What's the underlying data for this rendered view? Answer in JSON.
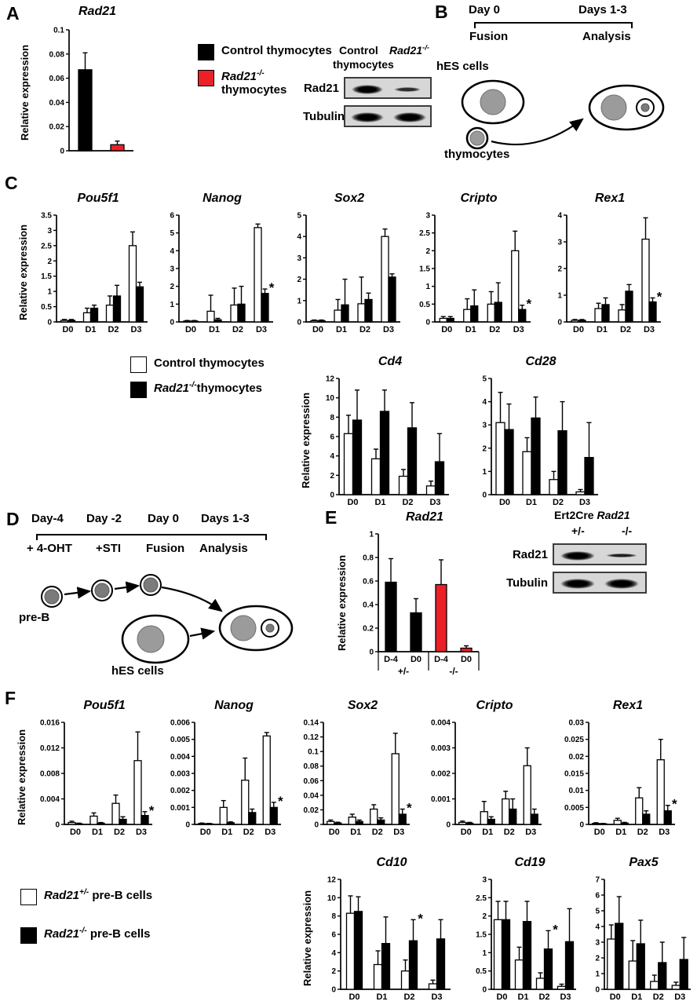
{
  "sig": "*",
  "colors": {
    "black": "#000000",
    "white": "#ffffff",
    "red": "#ec2027",
    "nucleus_gray": "#9b9b9b"
  },
  "ylabel": "Relative expression",
  "panels": {
    "a": "A",
    "b": "B",
    "c": "C",
    "d": "D",
    "e": "E",
    "f": "F"
  },
  "panel_a": {
    "legend_control": "Control thymocytes",
    "legend_ko_gene": "Rad21",
    "legend_ko_sup": "-/-",
    "legend_ko_rest": "thymocytes",
    "blot": {
      "col_control": "Control",
      "col_ko_gene": "Rad21",
      "col_ko_sup": "-/-",
      "col_sub": "thymocytes",
      "row1": "Rad21",
      "row2": "Tubulin"
    }
  },
  "panel_b": {
    "day0": "Day 0",
    "days13": "Days 1-3",
    "fusion": "Fusion",
    "analysis": "Analysis",
    "hes": "hES cells",
    "thymocytes": "thymocytes"
  },
  "panel_c": {
    "legend_control": "Control thymocytes",
    "legend_ko_gene": "Rad21",
    "legend_ko_sup": "-/-",
    "legend_ko_rest": "thymocytes"
  },
  "panel_d": {
    "timeline_top": [
      "Day-4",
      "Day -2",
      "Day 0",
      "Days 1-3"
    ],
    "timeline_bottom": [
      "+ 4-OHT",
      "+STI",
      "Fusion",
      "Analysis"
    ],
    "preb": "pre-B",
    "hes": "hES cells"
  },
  "panel_e": {
    "blot": {
      "head_plain": "Ert2Cre ",
      "head_gene": "Rad21",
      "lane1": "+/-",
      "lane2": "-/-",
      "row1": "Rad21",
      "row2": "Tubulin"
    }
  },
  "panel_f": {
    "legend_het_gene": "Rad21",
    "legend_het_sup": "+/-",
    "legend_het_rest": " pre-B cells",
    "legend_ko_gene": "Rad21",
    "legend_ko_sup": "-/-",
    "legend_ko_rest": " pre-B cells"
  },
  "chart_data": [
    {
      "id": "a_rad21",
      "type": "bar",
      "title": "Rad21",
      "ylabel": "Relative expression",
      "ymax": 0.1,
      "yticks": [
        0,
        0.02,
        0.04,
        0.06,
        0.08,
        0.1
      ],
      "categories": [
        "",
        ""
      ],
      "series": [
        {
          "name": "Control vs Rad21-/- thymocytes",
          "colors": [
            "#000000",
            "#ec2027"
          ],
          "values": [
            0.067,
            0.005
          ],
          "errors": [
            0.014,
            0.003
          ]
        }
      ]
    },
    {
      "id": "c_pou5f1",
      "type": "bar",
      "title": "Pou5f1",
      "ylabel": "Relative expression",
      "ymax": 3.5,
      "yticks": [
        0,
        0.5,
        1,
        1.5,
        2,
        2.5,
        3,
        3.5
      ],
      "categories": [
        "D0",
        "D1",
        "D2",
        "D3"
      ],
      "series": [
        {
          "name": "Control thymocytes",
          "fill": "#ffffff",
          "values": [
            0.05,
            0.3,
            0.55,
            2.5
          ],
          "errors": [
            0.03,
            0.15,
            0.3,
            0.45
          ]
        },
        {
          "name": "Rad21-/- thymocytes",
          "fill": "#000000",
          "values": [
            0.05,
            0.45,
            0.85,
            1.15
          ],
          "errors": [
            0.03,
            0.1,
            0.35,
            0.15
          ]
        }
      ]
    },
    {
      "id": "c_nanog",
      "type": "bar",
      "title": "Nanog",
      "ymax": 6,
      "yticks": [
        0,
        1,
        2,
        3,
        4,
        5,
        6
      ],
      "categories": [
        "D0",
        "D1",
        "D2",
        "D3"
      ],
      "series": [
        {
          "name": "Control thymocytes",
          "fill": "#ffffff",
          "values": [
            0.05,
            0.6,
            0.95,
            5.3
          ],
          "errors": [
            0.03,
            0.9,
            0.95,
            0.2
          ]
        },
        {
          "name": "Rad21-/- thymocytes",
          "fill": "#000000",
          "values": [
            0.05,
            0.12,
            1.0,
            1.6
          ],
          "errors": [
            0.03,
            0.08,
            1.0,
            0.25
          ]
        }
      ],
      "asterisk": 3
    },
    {
      "id": "c_sox2",
      "type": "bar",
      "title": "Sox2",
      "ymax": 5,
      "yticks": [
        0,
        1,
        2,
        3,
        4,
        5
      ],
      "categories": [
        "D0",
        "D1",
        "D2",
        "D3"
      ],
      "series": [
        {
          "name": "Control thymocytes",
          "fill": "#ffffff",
          "values": [
            0.06,
            0.55,
            0.85,
            4.0
          ],
          "errors": [
            0.03,
            0.5,
            1.25,
            0.35
          ]
        },
        {
          "name": "Rad21-/- thymocytes",
          "fill": "#000000",
          "values": [
            0.06,
            0.8,
            1.05,
            2.1
          ],
          "errors": [
            0.03,
            1.2,
            0.3,
            0.15
          ]
        }
      ]
    },
    {
      "id": "c_cripto",
      "type": "bar",
      "title": "Cripto",
      "ymax": 3,
      "yticks": [
        0,
        0.5,
        1,
        1.5,
        2,
        2.5,
        3
      ],
      "categories": [
        "D0",
        "D1",
        "D2",
        "D3"
      ],
      "series": [
        {
          "name": "Control thymocytes",
          "fill": "#ffffff",
          "values": [
            0.1,
            0.35,
            0.5,
            2.0
          ],
          "errors": [
            0.05,
            0.3,
            0.35,
            0.55
          ]
        },
        {
          "name": "Rad21-/- thymocytes",
          "fill": "#000000",
          "values": [
            0.1,
            0.45,
            0.55,
            0.35
          ],
          "errors": [
            0.05,
            0.45,
            0.55,
            0.12
          ]
        }
      ],
      "asterisk": 3
    },
    {
      "id": "c_rex1",
      "type": "bar",
      "title": "Rex1",
      "ymax": 4,
      "yticks": [
        0,
        1,
        2,
        3,
        4
      ],
      "categories": [
        "D0",
        "D1",
        "D2",
        "D3"
      ],
      "series": [
        {
          "name": "Control thymocytes",
          "fill": "#ffffff",
          "values": [
            0.06,
            0.5,
            0.45,
            3.1
          ],
          "errors": [
            0.03,
            0.2,
            0.2,
            0.8
          ]
        },
        {
          "name": "Rad21-/- thymocytes",
          "fill": "#000000",
          "values": [
            0.06,
            0.65,
            1.15,
            0.75
          ],
          "errors": [
            0.03,
            0.25,
            0.25,
            0.15
          ]
        }
      ],
      "asterisk": 3
    },
    {
      "id": "c_cd4",
      "type": "bar",
      "title": "Cd4",
      "ylabel": "Relative expression",
      "ymax": 12,
      "yticks": [
        0,
        2,
        4,
        6,
        8,
        10,
        12
      ],
      "categories": [
        "D0",
        "D1",
        "D2",
        "D3"
      ],
      "series": [
        {
          "name": "Control thymocytes",
          "fill": "#ffffff",
          "values": [
            6.3,
            3.7,
            1.9,
            0.9
          ],
          "errors": [
            1.9,
            1.0,
            0.7,
            0.5
          ]
        },
        {
          "name": "Rad21-/- thymocytes",
          "fill": "#000000",
          "values": [
            7.7,
            8.6,
            6.9,
            3.4
          ],
          "errors": [
            3.1,
            2.2,
            2.6,
            2.9
          ]
        }
      ]
    },
    {
      "id": "c_cd28",
      "type": "bar",
      "title": "Cd28",
      "ymax": 5,
      "yticks": [
        0,
        1,
        2,
        3,
        4,
        5
      ],
      "categories": [
        "D0",
        "D1",
        "D2",
        "D3"
      ],
      "series": [
        {
          "name": "Control thymocytes",
          "fill": "#ffffff",
          "values": [
            3.1,
            1.85,
            0.65,
            0.12
          ],
          "errors": [
            1.3,
            0.6,
            0.35,
            0.1
          ]
        },
        {
          "name": "Rad21-/- thymocytes",
          "fill": "#000000",
          "values": [
            2.8,
            3.3,
            2.75,
            1.6
          ],
          "errors": [
            1.1,
            0.9,
            1.25,
            1.5
          ]
        }
      ]
    },
    {
      "id": "e_rad21",
      "type": "bar",
      "title": "Rad21",
      "ylabel": "Relative expression",
      "ymax": 1,
      "yticks": [
        0,
        0.2,
        0.4,
        0.6,
        0.8,
        1
      ],
      "categories": [
        "D-4",
        "D0",
        "D-4",
        "D0"
      ],
      "series": [
        {
          "name": "Ert2Cre Rad21 pre-B cells",
          "colors": [
            "#000000",
            "#000000",
            "#ec2027",
            "#ec2027"
          ],
          "values": [
            0.59,
            0.33,
            0.57,
            0.03
          ],
          "errors": [
            0.2,
            0.12,
            0.21,
            0.02
          ]
        }
      ],
      "groups": [
        {
          "label": "+/-",
          "from": 0,
          "to": 1
        },
        {
          "label": "-/-",
          "from": 2,
          "to": 3
        }
      ]
    },
    {
      "id": "f_pou5f1",
      "type": "bar",
      "title": "Pou5f1",
      "ylabel": "Relative expression",
      "ymax": 0.016,
      "yticks": [
        0,
        0.004,
        0.008,
        0.012,
        0.016
      ],
      "categories": [
        "D0",
        "D1",
        "D2",
        "D3"
      ],
      "series": [
        {
          "name": "Rad21+/- pre-B cells",
          "fill": "#ffffff",
          "values": [
            0.0003,
            0.0013,
            0.0033,
            0.01
          ],
          "errors": [
            0.0002,
            0.0005,
            0.0013,
            0.0045
          ]
        },
        {
          "name": "Rad21-/- pre-B cells",
          "fill": "#000000",
          "values": [
            0.0001,
            0.0002,
            0.0008,
            0.0014
          ],
          "errors": [
            0.0001,
            0.0001,
            0.0004,
            0.0006
          ]
        }
      ],
      "asterisk": 3
    },
    {
      "id": "f_nanog",
      "type": "bar",
      "title": "Nanog",
      "ymax": 0.006,
      "yticks": [
        0,
        0.001,
        0.002,
        0.003,
        0.004,
        0.005,
        0.006
      ],
      "categories": [
        "D0",
        "D1",
        "D2",
        "D3"
      ],
      "series": [
        {
          "name": "Rad21+/- pre-B cells",
          "fill": "#ffffff",
          "values": [
            5e-05,
            0.001,
            0.0026,
            0.0052
          ],
          "errors": [
            3e-05,
            0.0004,
            0.0013,
            0.0002
          ]
        },
        {
          "name": "Rad21-/- pre-B cells",
          "fill": "#000000",
          "values": [
            4e-05,
            0.0001,
            0.0007,
            0.001
          ],
          "errors": [
            2e-05,
            5e-05,
            0.0002,
            0.0003
          ]
        }
      ],
      "asterisk": 3
    },
    {
      "id": "f_sox2",
      "type": "bar",
      "title": "Sox2",
      "ymax": 0.14,
      "yticks": [
        0,
        0.02,
        0.04,
        0.06,
        0.08,
        0.1,
        0.12,
        0.14
      ],
      "categories": [
        "D0",
        "D1",
        "D2",
        "D3"
      ],
      "series": [
        {
          "name": "Rad21+/- pre-B cells",
          "fill": "#ffffff",
          "values": [
            0.004,
            0.01,
            0.021,
            0.097
          ],
          "errors": [
            0.002,
            0.004,
            0.006,
            0.028
          ]
        },
        {
          "name": "Rad21-/- pre-B cells",
          "fill": "#000000",
          "values": [
            0.002,
            0.004,
            0.006,
            0.014
          ],
          "errors": [
            0.001,
            0.002,
            0.003,
            0.007
          ]
        }
      ],
      "asterisk": 3
    },
    {
      "id": "f_cripto",
      "type": "bar",
      "title": "Cripto",
      "ymax": 0.004,
      "yticks": [
        0,
        0.001,
        0.002,
        0.003,
        0.004
      ],
      "categories": [
        "D0",
        "D1",
        "D2",
        "D3"
      ],
      "series": [
        {
          "name": "Rad21+/- pre-B cells",
          "fill": "#ffffff",
          "values": [
            8e-05,
            0.0005,
            0.001,
            0.0023
          ],
          "errors": [
            5e-05,
            0.0004,
            0.0003,
            0.0007
          ]
        },
        {
          "name": "Rad21-/- pre-B cells",
          "fill": "#000000",
          "values": [
            5e-05,
            0.0002,
            0.0006,
            0.0004
          ],
          "errors": [
            3e-05,
            0.0001,
            0.0004,
            0.0002
          ]
        }
      ]
    },
    {
      "id": "f_rex1",
      "type": "bar",
      "title": "Rex1",
      "ymax": 0.03,
      "yticks": [
        0,
        0.005,
        0.01,
        0.015,
        0.02,
        0.025,
        0.03
      ],
      "categories": [
        "D0",
        "D1",
        "D2",
        "D3"
      ],
      "series": [
        {
          "name": "Rad21+/- pre-B cells",
          "fill": "#ffffff",
          "values": [
            0.0003,
            0.0012,
            0.0078,
            0.019
          ],
          "errors": [
            0.0002,
            0.0006,
            0.003,
            0.006
          ]
        },
        {
          "name": "Rad21-/- pre-B cells",
          "fill": "#000000",
          "values": [
            0.0002,
            0.0004,
            0.003,
            0.004
          ],
          "errors": [
            0.0001,
            0.0002,
            0.001,
            0.0016
          ]
        }
      ],
      "asterisk": 3
    },
    {
      "id": "f_cd10",
      "type": "bar",
      "title": "Cd10",
      "ylabel": "Relative expression",
      "ymax": 12,
      "yticks": [
        0,
        2,
        4,
        6,
        8,
        10,
        12
      ],
      "categories": [
        "D0",
        "D1",
        "D2",
        "D3"
      ],
      "series": [
        {
          "name": "Rad21+/- pre-B cells",
          "fill": "#ffffff",
          "values": [
            8.3,
            2.7,
            2.0,
            0.6
          ],
          "errors": [
            1.9,
            1.5,
            1.2,
            0.4
          ]
        },
        {
          "name": "Rad21-/- pre-B cells",
          "fill": "#000000",
          "values": [
            8.5,
            5.0,
            5.3,
            5.5
          ],
          "errors": [
            1.6,
            2.9,
            2.3,
            2.1
          ]
        }
      ],
      "asterisk": 2
    },
    {
      "id": "f_cd19",
      "type": "bar",
      "title": "Cd19",
      "ymax": 3,
      "yticks": [
        0,
        0.5,
        1,
        1.5,
        2,
        2.5,
        3
      ],
      "categories": [
        "D0",
        "D1",
        "D2",
        "D3"
      ],
      "series": [
        {
          "name": "Rad21+/- pre-B cells",
          "fill": "#ffffff",
          "values": [
            1.9,
            0.8,
            0.3,
            0.08
          ],
          "errors": [
            0.5,
            0.35,
            0.15,
            0.06
          ]
        },
        {
          "name": "Rad21-/- pre-B cells",
          "fill": "#000000",
          "values": [
            1.9,
            1.85,
            1.1,
            1.3
          ],
          "errors": [
            0.5,
            0.55,
            0.5,
            0.9
          ]
        }
      ],
      "asterisk": 2
    },
    {
      "id": "f_pax5",
      "type": "bar",
      "title": "Pax5",
      "ymax": 7,
      "yticks": [
        0,
        1,
        2,
        3,
        4,
        5,
        6,
        7
      ],
      "categories": [
        "D0",
        "D1",
        "D2",
        "D3"
      ],
      "series": [
        {
          "name": "Rad21+/- pre-B cells",
          "fill": "#ffffff",
          "values": [
            3.2,
            1.8,
            0.5,
            0.25
          ],
          "errors": [
            0.9,
            1.3,
            0.4,
            0.2
          ]
        },
        {
          "name": "Rad21-/- pre-B cells",
          "fill": "#000000",
          "values": [
            4.2,
            2.9,
            1.7,
            1.9
          ],
          "errors": [
            1.7,
            1.5,
            1.3,
            1.4
          ]
        }
      ]
    }
  ]
}
